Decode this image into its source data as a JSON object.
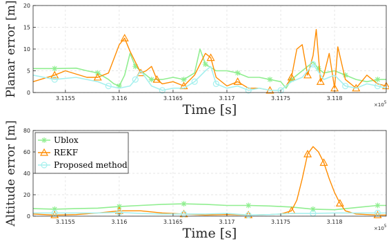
{
  "chart_data": [
    {
      "type": "line",
      "xlabel": "Time [s]",
      "ylabel": "Planar error [m]",
      "x_multiplier": "×10^5",
      "xlim": [
        3.1152,
        3.11848
      ],
      "ylim": [
        0,
        20
      ],
      "x_ticks": [
        3.1155,
        3.116,
        3.1165,
        3.117,
        3.1175,
        3.118
      ],
      "x_tick_labels": [
        "3.1155",
        "3.116",
        "3.1165",
        "3.117",
        "3.1175",
        "3.118"
      ],
      "y_ticks": [
        0,
        5,
        10,
        15,
        20
      ],
      "grid": true,
      "series": [
        {
          "name": "Ublox",
          "color": "#90ee90",
          "marker": "asterisk",
          "x": [
            3.1152,
            3.1154,
            3.1156,
            3.1157,
            3.1158,
            3.1159,
            3.11595,
            3.116,
            3.11605,
            3.1161,
            3.11615,
            3.1162,
            3.11625,
            3.1163,
            3.1164,
            3.1165,
            3.1166,
            3.1167,
            3.11675,
            3.1168,
            3.1169,
            3.117,
            3.1171,
            3.1172,
            3.1173,
            3.1174,
            3.1175,
            3.11755,
            3.1176,
            3.1177,
            3.1178,
            3.11785,
            3.1179,
            3.118,
            3.1181,
            3.1182,
            3.1183,
            3.1184,
            3.11848
          ],
          "y": [
            5.5,
            5.5,
            5.6,
            5.0,
            4.5,
            3.0,
            2.0,
            1.5,
            4.0,
            9.0,
            6.0,
            5.0,
            4.0,
            3.0,
            3.0,
            3.5,
            3.0,
            4.5,
            10.0,
            6.5,
            5.0,
            5.0,
            4.5,
            3.5,
            3.5,
            3.0,
            2.5,
            1.0,
            3.0,
            5.0,
            7.0,
            5.5,
            4.5,
            5.0,
            4.0,
            3.0,
            2.5,
            3.0,
            3.0
          ]
        },
        {
          "name": "REKF",
          "color": "#ff8c00",
          "marker": "triangle",
          "x": [
            3.1152,
            3.1154,
            3.1155,
            3.1157,
            3.1158,
            3.1159,
            3.116,
            3.11605,
            3.1161,
            3.11615,
            3.1162,
            3.11625,
            3.1163,
            3.11635,
            3.1164,
            3.1165,
            3.1166,
            3.1167,
            3.1168,
            3.11685,
            3.1169,
            3.117,
            3.1171,
            3.1172,
            3.1173,
            3.1174,
            3.1175,
            3.11755,
            3.1176,
            3.11765,
            3.1177,
            3.11775,
            3.1178,
            3.11783,
            3.11787,
            3.1179,
            3.11795,
            3.118,
            3.11803,
            3.1181,
            3.1182,
            3.1183,
            3.1184,
            3.11848
          ],
          "y": [
            2.5,
            4.0,
            5.0,
            3.5,
            3.5,
            4.5,
            11.0,
            12.5,
            9.5,
            7.0,
            4.5,
            5.0,
            6.0,
            3.0,
            2.0,
            2.5,
            1.5,
            4.0,
            9.0,
            8.0,
            3.5,
            1.5,
            2.5,
            1.0,
            1.0,
            0.5,
            0.5,
            1.5,
            3.5,
            10.0,
            11.0,
            4.0,
            8.5,
            14.5,
            2.5,
            4.0,
            9.0,
            1.0,
            10.5,
            3.0,
            1.0,
            4.0,
            2.0,
            1.5
          ]
        },
        {
          "name": "Proposed method",
          "color": "#a6f0ee",
          "marker": "circle",
          "x": [
            3.1152,
            3.1154,
            3.1156,
            3.1158,
            3.1159,
            3.116,
            3.1161,
            3.11615,
            3.1162,
            3.1163,
            3.1164,
            3.1165,
            3.1166,
            3.1167,
            3.1168,
            3.11685,
            3.1169,
            3.117,
            3.1171,
            3.1172,
            3.1173,
            3.1174,
            3.1175,
            3.1176,
            3.1177,
            3.1178,
            3.1179,
            3.118,
            3.1181,
            3.1182,
            3.1183,
            3.1184,
            3.11848
          ],
          "y": [
            4.0,
            3.0,
            3.5,
            2.5,
            1.5,
            1.0,
            1.5,
            3.0,
            5.0,
            1.5,
            0.5,
            1.0,
            1.0,
            2.5,
            5.0,
            6.0,
            2.0,
            1.0,
            1.5,
            0.5,
            1.0,
            0.5,
            0.5,
            2.5,
            3.5,
            6.5,
            3.0,
            4.0,
            1.5,
            1.0,
            2.0,
            1.5,
            1.0
          ]
        }
      ]
    },
    {
      "type": "line",
      "xlabel": "Time [s]",
      "ylabel": "Altitude error [m]",
      "x_multiplier": "×10^5",
      "xlim": [
        3.1152,
        3.11848
      ],
      "ylim": [
        0,
        80
      ],
      "x_ticks": [
        3.1155,
        3.116,
        3.1165,
        3.117,
        3.1175,
        3.118
      ],
      "x_tick_labels": [
        "3.1155",
        "3.116",
        "3.1165",
        "3.117",
        "3.1175",
        "3.118"
      ],
      "y_ticks": [
        0,
        20,
        40,
        60,
        80
      ],
      "grid": true,
      "legend": {
        "position": "top-left",
        "entries": [
          "Ublox",
          "REKF",
          "Proposed method"
        ]
      },
      "series": [
        {
          "name": "Ublox",
          "color": "#90ee90",
          "marker": "asterisk",
          "x": [
            3.1152,
            3.1154,
            3.1156,
            3.1158,
            3.116,
            3.1162,
            3.1164,
            3.1166,
            3.1168,
            3.117,
            3.1172,
            3.1174,
            3.1176,
            3.1178,
            3.118,
            3.1182,
            3.1184,
            3.11848
          ],
          "y": [
            7,
            6.5,
            7,
            7.5,
            9,
            10,
            11,
            11.5,
            11,
            10,
            10,
            9.5,
            8.5,
            6.5,
            6,
            8,
            10,
            10
          ]
        },
        {
          "name": "REKF",
          "color": "#ff8c00",
          "marker": "triangle",
          "x": [
            3.1152,
            3.1154,
            3.1156,
            3.1158,
            3.116,
            3.1162,
            3.1164,
            3.1166,
            3.1168,
            3.117,
            3.1172,
            3.1174,
            3.1175,
            3.1176,
            3.11765,
            3.1177,
            3.11775,
            3.1178,
            3.11785,
            3.1179,
            3.11795,
            3.118,
            3.11805,
            3.1181,
            3.1182,
            3.1184,
            3.11848
          ],
          "y": [
            2,
            1,
            1.5,
            3,
            5,
            5,
            3,
            2,
            1,
            1.5,
            1,
            1.5,
            2,
            5,
            15,
            35,
            58,
            65,
            60,
            50,
            35,
            22,
            12,
            5,
            2,
            1,
            1
          ]
        },
        {
          "name": "Proposed method",
          "color": "#a6f0ee",
          "marker": "circle",
          "x": [
            3.1152,
            3.1154,
            3.1156,
            3.1158,
            3.116,
            3.1162,
            3.1164,
            3.1166,
            3.1168,
            3.117,
            3.1172,
            3.1174,
            3.1176,
            3.1178,
            3.118,
            3.1182,
            3.1184,
            3.11848
          ],
          "y": [
            3,
            3,
            3,
            3,
            3.5,
            2.5,
            2,
            2,
            2,
            2.5,
            1,
            1.5,
            2.5,
            2.5,
            3,
            3,
            3,
            3
          ]
        }
      ]
    }
  ]
}
